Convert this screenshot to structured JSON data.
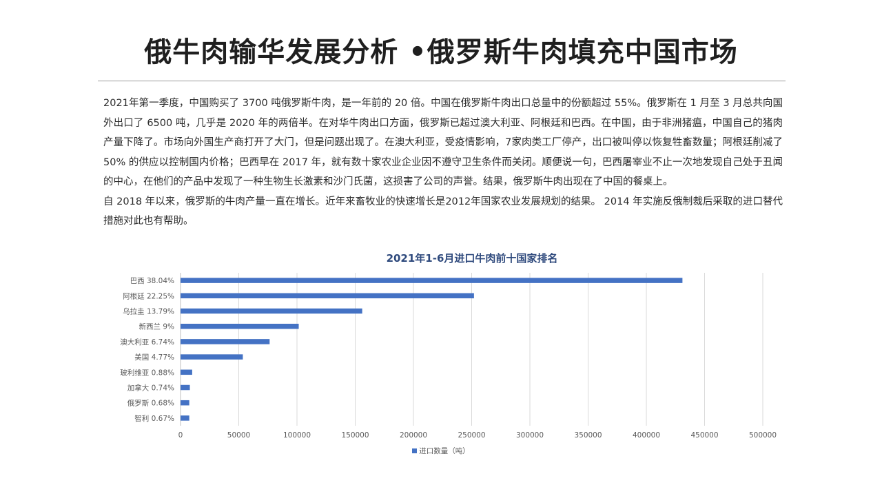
{
  "page": {
    "title": "俄牛肉输华发展分析 •俄罗斯牛肉填充中国市场",
    "paragraphs": [
      "2021年第一季度，中国购买了 3700 吨俄罗斯牛肉，是一年前的 20 倍。中国在俄罗斯牛肉出口总量中的份额超过 55%。俄罗斯在 1 月至 3 月总共向国外出口了 6500 吨，几乎是 2020 年的两倍半。在对华牛肉出口方面，俄罗斯已超过澳大利亚、阿根廷和巴西。在中国，由于非洲猪瘟，中国自己的猪肉产量下降了。市场向外国生产商打开了大门，但是问题出现了。在澳大利亚，受疫情影响，7家肉类工厂停产，出口被叫停以恢复牲畜数量；阿根廷削减了 50% 的供应以控制国内价格；巴西早在 2017 年，就有数十家农业企业因不遵守卫生条件而关闭。顺便说一句，巴西屠宰业不止一次地发现自己处于丑闻的中心，在他们的产品中发现了一种生物生长激素和沙门氏菌，这损害了公司的声誉。结果，俄罗斯牛肉出现在了中国的餐桌上。",
      "自 2018 年以来，俄罗斯的牛肉产量一直在增长。近年来畜牧业的快速增长是2012年国家农业发展规划的结果。 2014 年实施反俄制裁后采取的进口替代措施对此也有帮助。"
    ]
  },
  "chart_data": {
    "type": "bar",
    "orientation": "horizontal",
    "title": "2021年1-6月进口牛肉前十国家排名",
    "categories": [
      "巴西 38.04%",
      "阿根廷 22.25%",
      "乌拉圭 13.79%",
      "新西兰 9%",
      "澳大利亚 6.74%",
      "美国 4.77%",
      "玻利维亚 0.88%",
      "加拿大 0.74%",
      "俄罗斯 0.68%",
      "智利 0.67%"
    ],
    "series": [
      {
        "name": "进口数量（吨）",
        "values": [
          431000,
          252000,
          156000,
          101500,
          76500,
          53500,
          10000,
          8000,
          7500,
          7500
        ]
      }
    ],
    "xlim": [
      0,
      500000
    ],
    "xticks": [
      0,
      50000,
      100000,
      150000,
      200000,
      250000,
      300000,
      350000,
      400000,
      450000,
      500000
    ],
    "xlabel": "",
    "ylabel": "",
    "grid": true,
    "legend_position": "bottom",
    "colors": {
      "bar": "#4472c4",
      "grid": "#d9d9d9",
      "tick_text": "#595959",
      "title": "#2f4a7d"
    }
  }
}
